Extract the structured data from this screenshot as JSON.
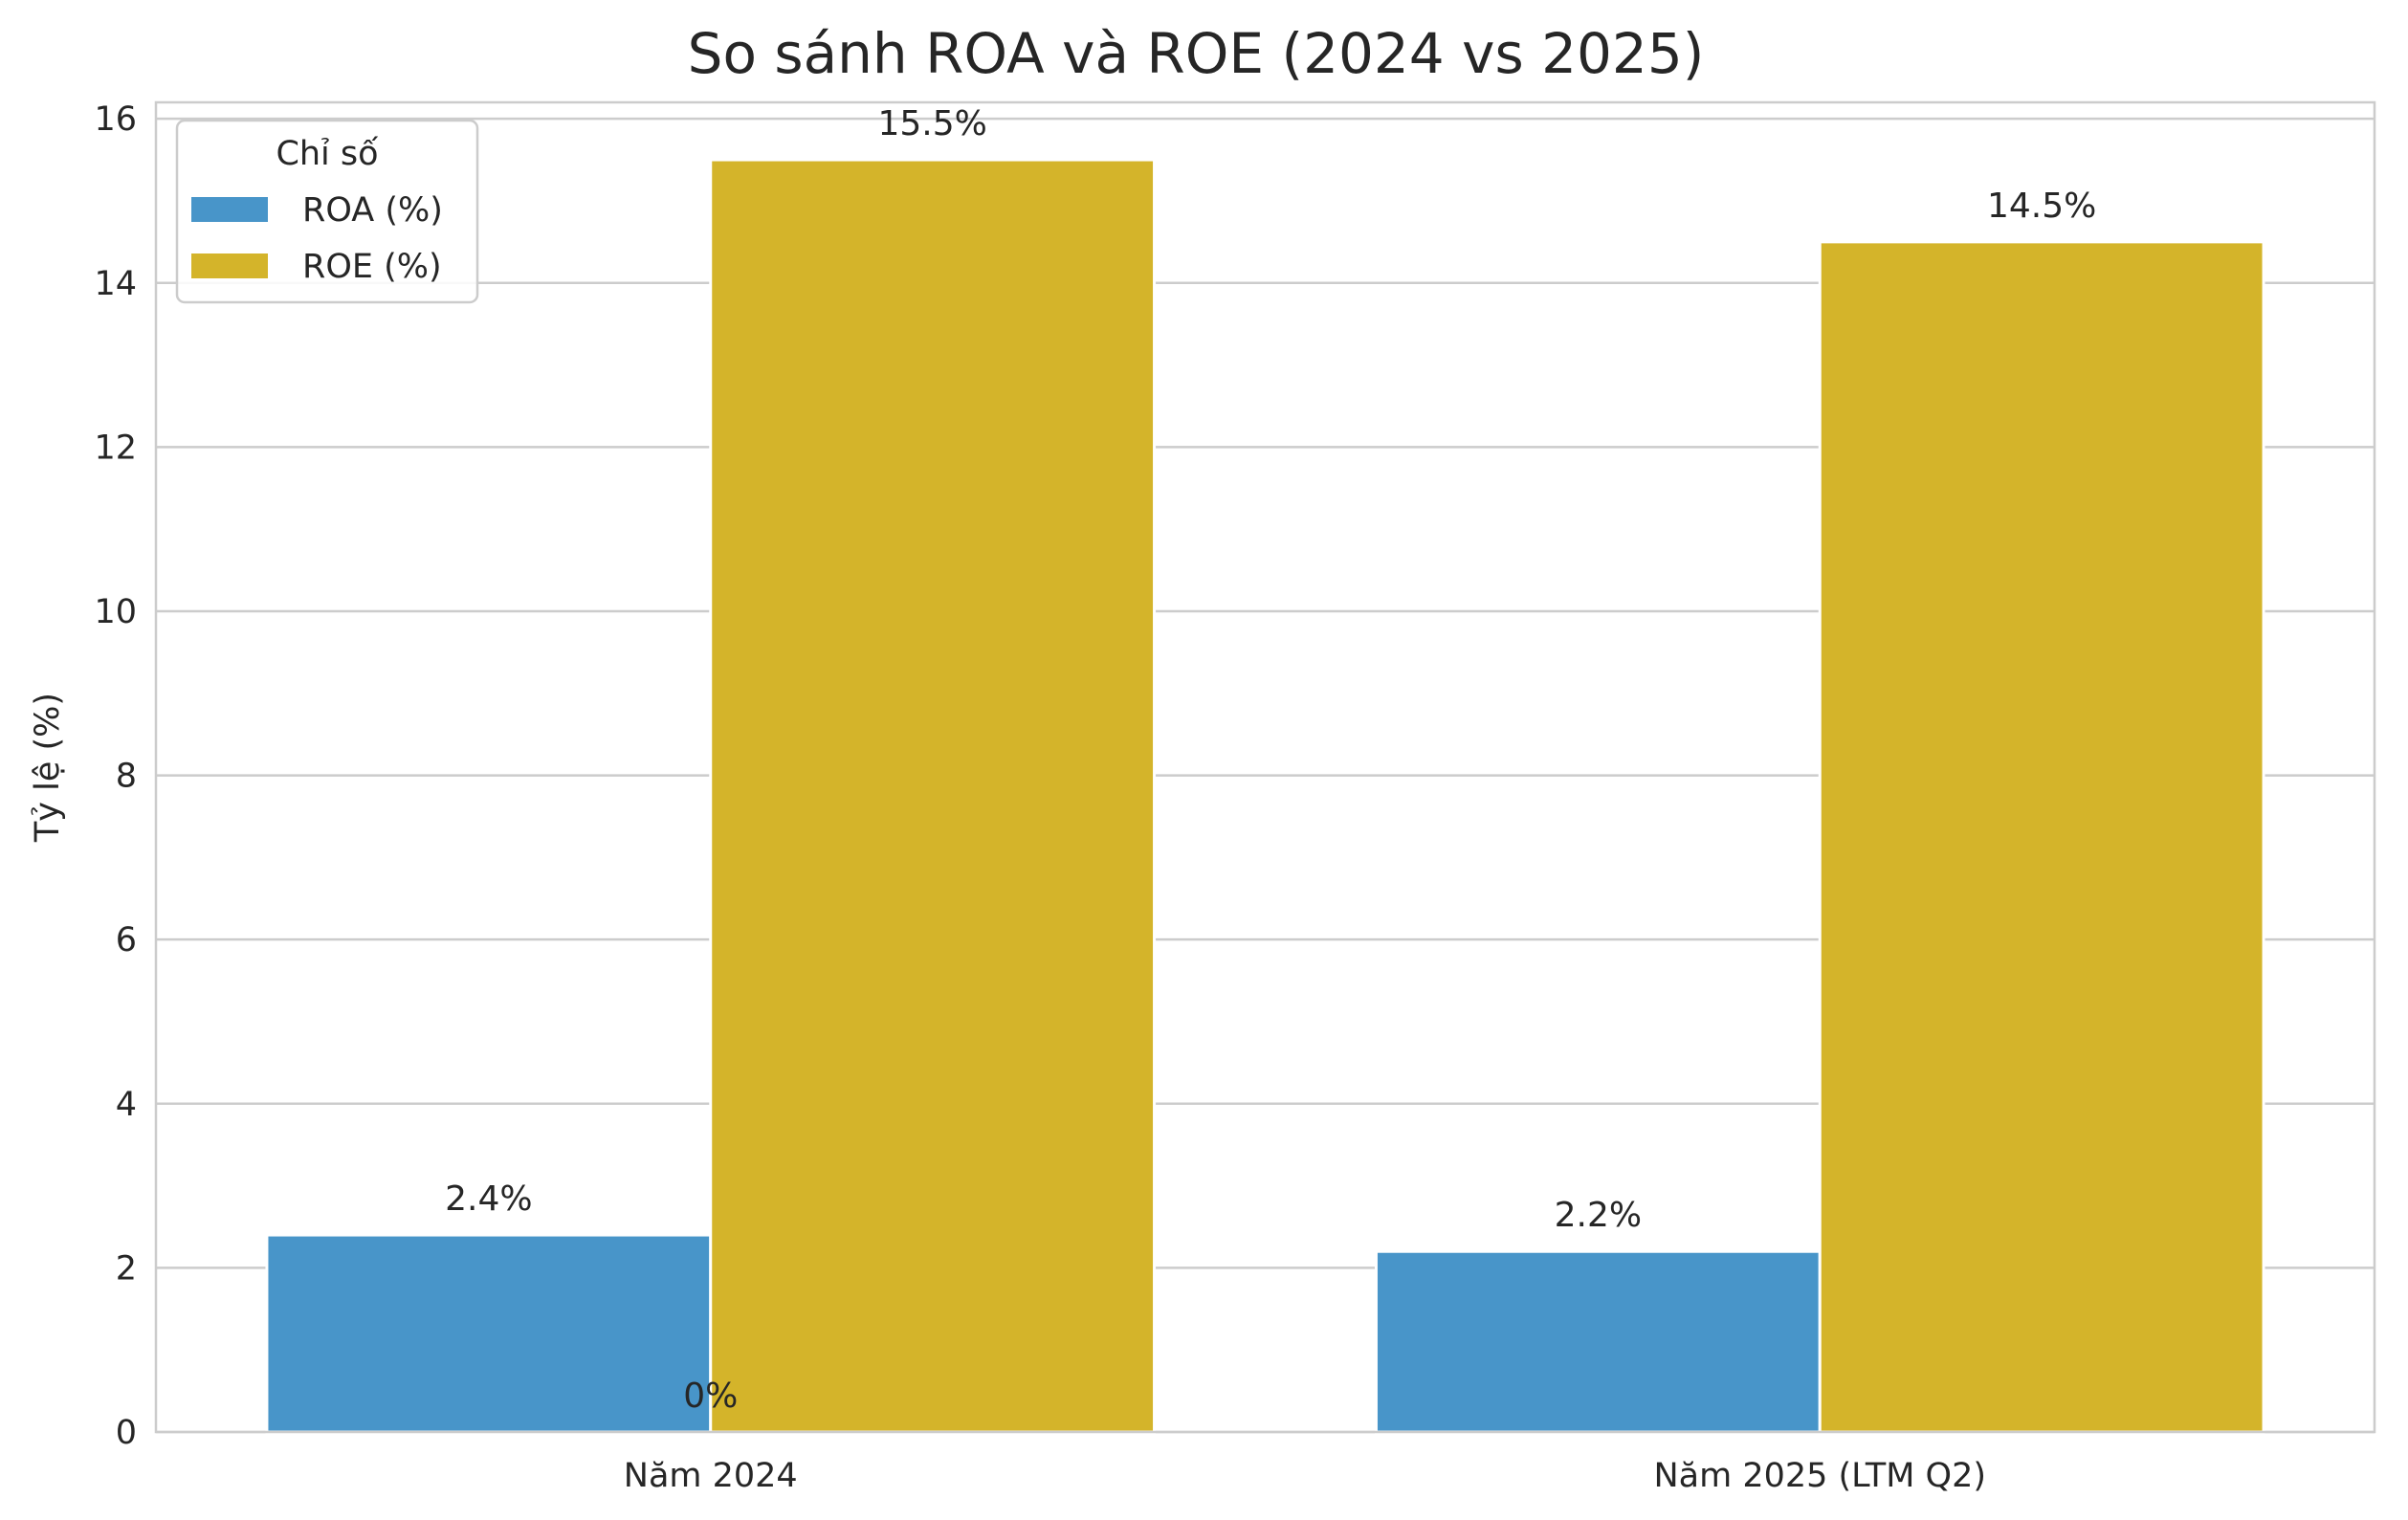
{
  "chart_data": {
    "type": "bar",
    "title": "So sánh ROA và ROE (2024 vs 2025)",
    "xlabel": "",
    "ylabel": "Tỷ lệ (%)",
    "categories": [
      "Năm 2024",
      "Năm 2025 (LTM Q2)"
    ],
    "series": [
      {
        "name": "ROA (%)",
        "values": [
          2.4,
          2.2
        ],
        "labels": [
          "2.4%",
          "2.2%"
        ],
        "color": "#3498db"
      },
      {
        "name": "ROE (%)",
        "values": [
          15.5,
          14.5
        ],
        "labels": [
          "15.5%",
          "14.5%"
        ],
        "color": "#f1c40f"
      }
    ],
    "extra_annotations": [
      {
        "text": "0%",
        "x": "Năm 2024",
        "y": 0
      }
    ],
    "legend": {
      "title": "Chỉ số",
      "placement": "top-left"
    },
    "ylim": [
      0,
      16.2
    ],
    "yticks": [
      0,
      2,
      4,
      6,
      8,
      10,
      12,
      14,
      16
    ],
    "grid": true,
    "colors": {
      "grid": "#cccccc",
      "spine": "#cccccc",
      "bar_roa": "#4895c9",
      "bar_roe": "#d4b42a",
      "text": "#262626"
    }
  }
}
